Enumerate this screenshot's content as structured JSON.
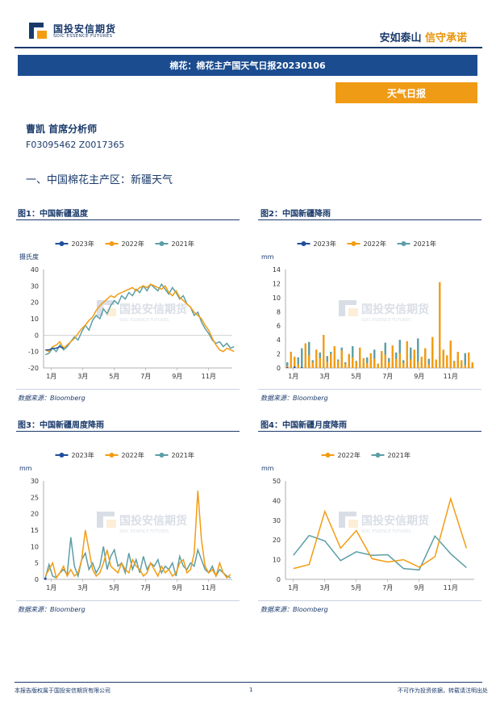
{
  "header": {
    "logo_cn": "国投安信期货",
    "logo_en": "SDIC ESSENCE FUTURES",
    "slogan_a": "安如泰山",
    "slogan_b": "信守承诺",
    "title": "棉花：棉花主产国天气日报20230106",
    "tag": "天气日报"
  },
  "analyst": {
    "name": "曹凯 首席分析师",
    "id": "F03095462 Z0017365"
  },
  "section_heading": "一、中国棉花主产区：新疆天气",
  "watermark": {
    "cn": "国投安信期货",
    "en": "SDIC ESSENCE FUTURES"
  },
  "colors": {
    "navy": "#1a3a6b",
    "s2023": "#1f4e9c",
    "s2022": "#f39c12",
    "s2021": "#5b9ea6"
  },
  "figures": [
    {
      "title": "图1：中国新疆温度",
      "source": "数据来源：Bloomberg",
      "chart_data": {
        "type": "line",
        "ylabel": "摄氏度",
        "ylim": [
          -20,
          40
        ],
        "yticks": [
          -20,
          -10,
          0,
          10,
          20,
          30,
          40
        ],
        "xticks": [
          "1月",
          "3月",
          "5月",
          "7月",
          "9月",
          "11月"
        ],
        "legend": [
          "2023年",
          "2022年",
          "2021年"
        ],
        "series": [
          {
            "name": "2023年",
            "values": [
              -9,
              -9,
              -8,
              -8,
              -7,
              -8
            ]
          },
          {
            "name": "2022年",
            "values": [
              -9,
              -10,
              -7,
              -6,
              -4,
              -8,
              -6,
              -4,
              -2,
              1,
              4,
              6,
              9,
              11,
              15,
              18,
              20,
              22,
              24,
              23,
              25,
              26,
              27,
              28,
              29,
              27,
              29,
              30,
              29,
              31,
              30,
              29,
              28,
              30,
              26,
              24,
              27,
              23,
              21,
              19,
              17,
              14,
              12,
              10,
              6,
              3,
              -2,
              -6,
              -9,
              -10,
              -8,
              -9,
              -10
            ]
          },
          {
            "name": "2021年",
            "values": [
              -12,
              -11,
              -8,
              -10,
              -6,
              -9,
              -7,
              -4,
              -1,
              -3,
              2,
              6,
              3,
              9,
              12,
              10,
              16,
              13,
              18,
              21,
              19,
              24,
              22,
              26,
              24,
              28,
              26,
              30,
              27,
              31,
              29,
              27,
              31,
              28,
              25,
              29,
              26,
              22,
              24,
              19,
              17,
              12,
              14,
              8,
              4,
              1,
              -3,
              -5,
              -4,
              -7,
              -5,
              -8,
              -7
            ]
          }
        ]
      }
    },
    {
      "title": "图2：中国新疆降雨",
      "source": "数据来源：Bloomberg",
      "chart_data": {
        "type": "bar",
        "ylabel": "mm",
        "ylim": [
          0,
          14
        ],
        "yticks": [
          0,
          2,
          4,
          6,
          8,
          10,
          12,
          14
        ],
        "xticks": [
          "1月",
          "3月",
          "5月",
          "7月",
          "9月",
          "11月"
        ],
        "legend": [
          "2023年",
          "2022年",
          "2021年"
        ],
        "series": [
          {
            "name": "2023年",
            "values": [
              0.1,
              0,
              0.2,
              0,
              0.1,
              0
            ]
          },
          {
            "name": "2022年",
            "values": [
              0.3,
              2.3,
              1.6,
              0.5,
              0,
              3.5,
              1.8,
              0.8,
              2.6,
              1.4,
              4.7,
              0.9,
              2,
              3.1,
              1,
              2.5,
              0.6,
              2,
              1.5,
              0.9,
              2.9,
              1.4,
              0.7,
              2.1,
              1.3,
              0.6,
              2.4,
              1.9,
              0.8,
              3.2,
              1.3,
              2.1,
              0.7,
              3.8,
              1.2,
              2.6,
              0.9,
              1.6,
              2.8,
              0.5,
              4.4,
              1.2,
              12.2,
              2.6,
              1.8,
              3.9,
              0.9,
              2.3,
              1.1,
              0.4,
              2.2,
              0.8
            ]
          },
          {
            "name": "2021年",
            "values": [
              0.8,
              0.2,
              0,
              1.5,
              2.8,
              0.6,
              3.7,
              1.1,
              0.4,
              2.2,
              0.9,
              1.7,
              2.3,
              0.5,
              1.2,
              2.9,
              0.8,
              1.8,
              3.1,
              1,
              2.4,
              0.7,
              1.5,
              1.2,
              2.6,
              0.6,
              1.9,
              3.6,
              1.4,
              0.8,
              2.2,
              4,
              1.1,
              0.6,
              2.9,
              1.7,
              4.2,
              0.9,
              2.7,
              1.3,
              3.2,
              0.8,
              1.6,
              2.4,
              0.5,
              3.3,
              1,
              1.8,
              0.6,
              2.1,
              0.4,
              0.3
            ]
          }
        ]
      }
    },
    {
      "title": "图3：中国新疆周度降雨",
      "source": "数据来源：Bloomberg",
      "chart_data": {
        "type": "line",
        "ylabel": "mm",
        "ylim": [
          0,
          30
        ],
        "yticks": [
          0,
          5,
          10,
          15,
          20,
          25,
          30
        ],
        "xticks": [
          "1月",
          "3月",
          "5月",
          "7月",
          "9月",
          "11月"
        ],
        "legend": [
          "2023年",
          "2022年",
          "2021年"
        ],
        "series": [
          {
            "name": "2023年",
            "values": [
              0.2
            ]
          },
          {
            "name": "2022年",
            "values": [
              1,
              3,
              5,
              0.5,
              2,
              4,
              1,
              3,
              1,
              2,
              6,
              15,
              9,
              3,
              1,
              2,
              5,
              9,
              4,
              3,
              2,
              5,
              3,
              2,
              6,
              4,
              3,
              1,
              2,
              5,
              3,
              1,
              4,
              2,
              3,
              1,
              2,
              5,
              6,
              2,
              3,
              8,
              27,
              12,
              4,
              2,
              3,
              1,
              5,
              2,
              0.5,
              1.5
            ]
          },
          {
            "name": "2021年",
            "values": [
              0.5,
              4.5,
              1,
              0.5,
              2,
              3,
              1.5,
              12.8,
              4,
              1,
              6,
              8,
              3,
              5,
              2,
              4,
              10,
              3,
              7,
              9,
              4,
              5,
              2,
              8,
              3,
              6,
              2,
              7,
              3,
              5,
              4,
              6,
              2,
              4,
              3,
              5,
              1,
              7,
              4,
              3,
              5,
              4,
              9,
              6,
              3,
              2,
              4,
              1,
              3,
              2,
              1,
              0.5
            ]
          }
        ]
      }
    },
    {
      "title": "图4：中国新疆月度降雨",
      "source": "数据来源：Bloomberg",
      "chart_data": {
        "type": "line",
        "ylabel": "mm",
        "ylim": [
          0,
          50
        ],
        "yticks": [
          0,
          10,
          20,
          30,
          40,
          50
        ],
        "xticks": [
          "1月",
          "3月",
          "5月",
          "7月",
          "9月",
          "11月"
        ],
        "legend": [
          "2022年",
          "2021年"
        ],
        "series": [
          {
            "name": "2022年",
            "values": [
              5.5,
              7.5,
              34.5,
              15.8,
              24.8,
              10.5,
              8.8,
              10,
              6.2,
              11.5,
              41,
              15.8
            ]
          },
          {
            "name": "2021年",
            "values": [
              12.2,
              22.3,
              19.5,
              9.5,
              14,
              12.2,
              12.5,
              5.5,
              4.8,
              22,
              13,
              6
            ]
          }
        ]
      }
    }
  ],
  "footer": {
    "left": "本报告版权属于国投安信期货有限公司",
    "page": "1",
    "right": "不可作为投资依据，转载请注明出处"
  }
}
